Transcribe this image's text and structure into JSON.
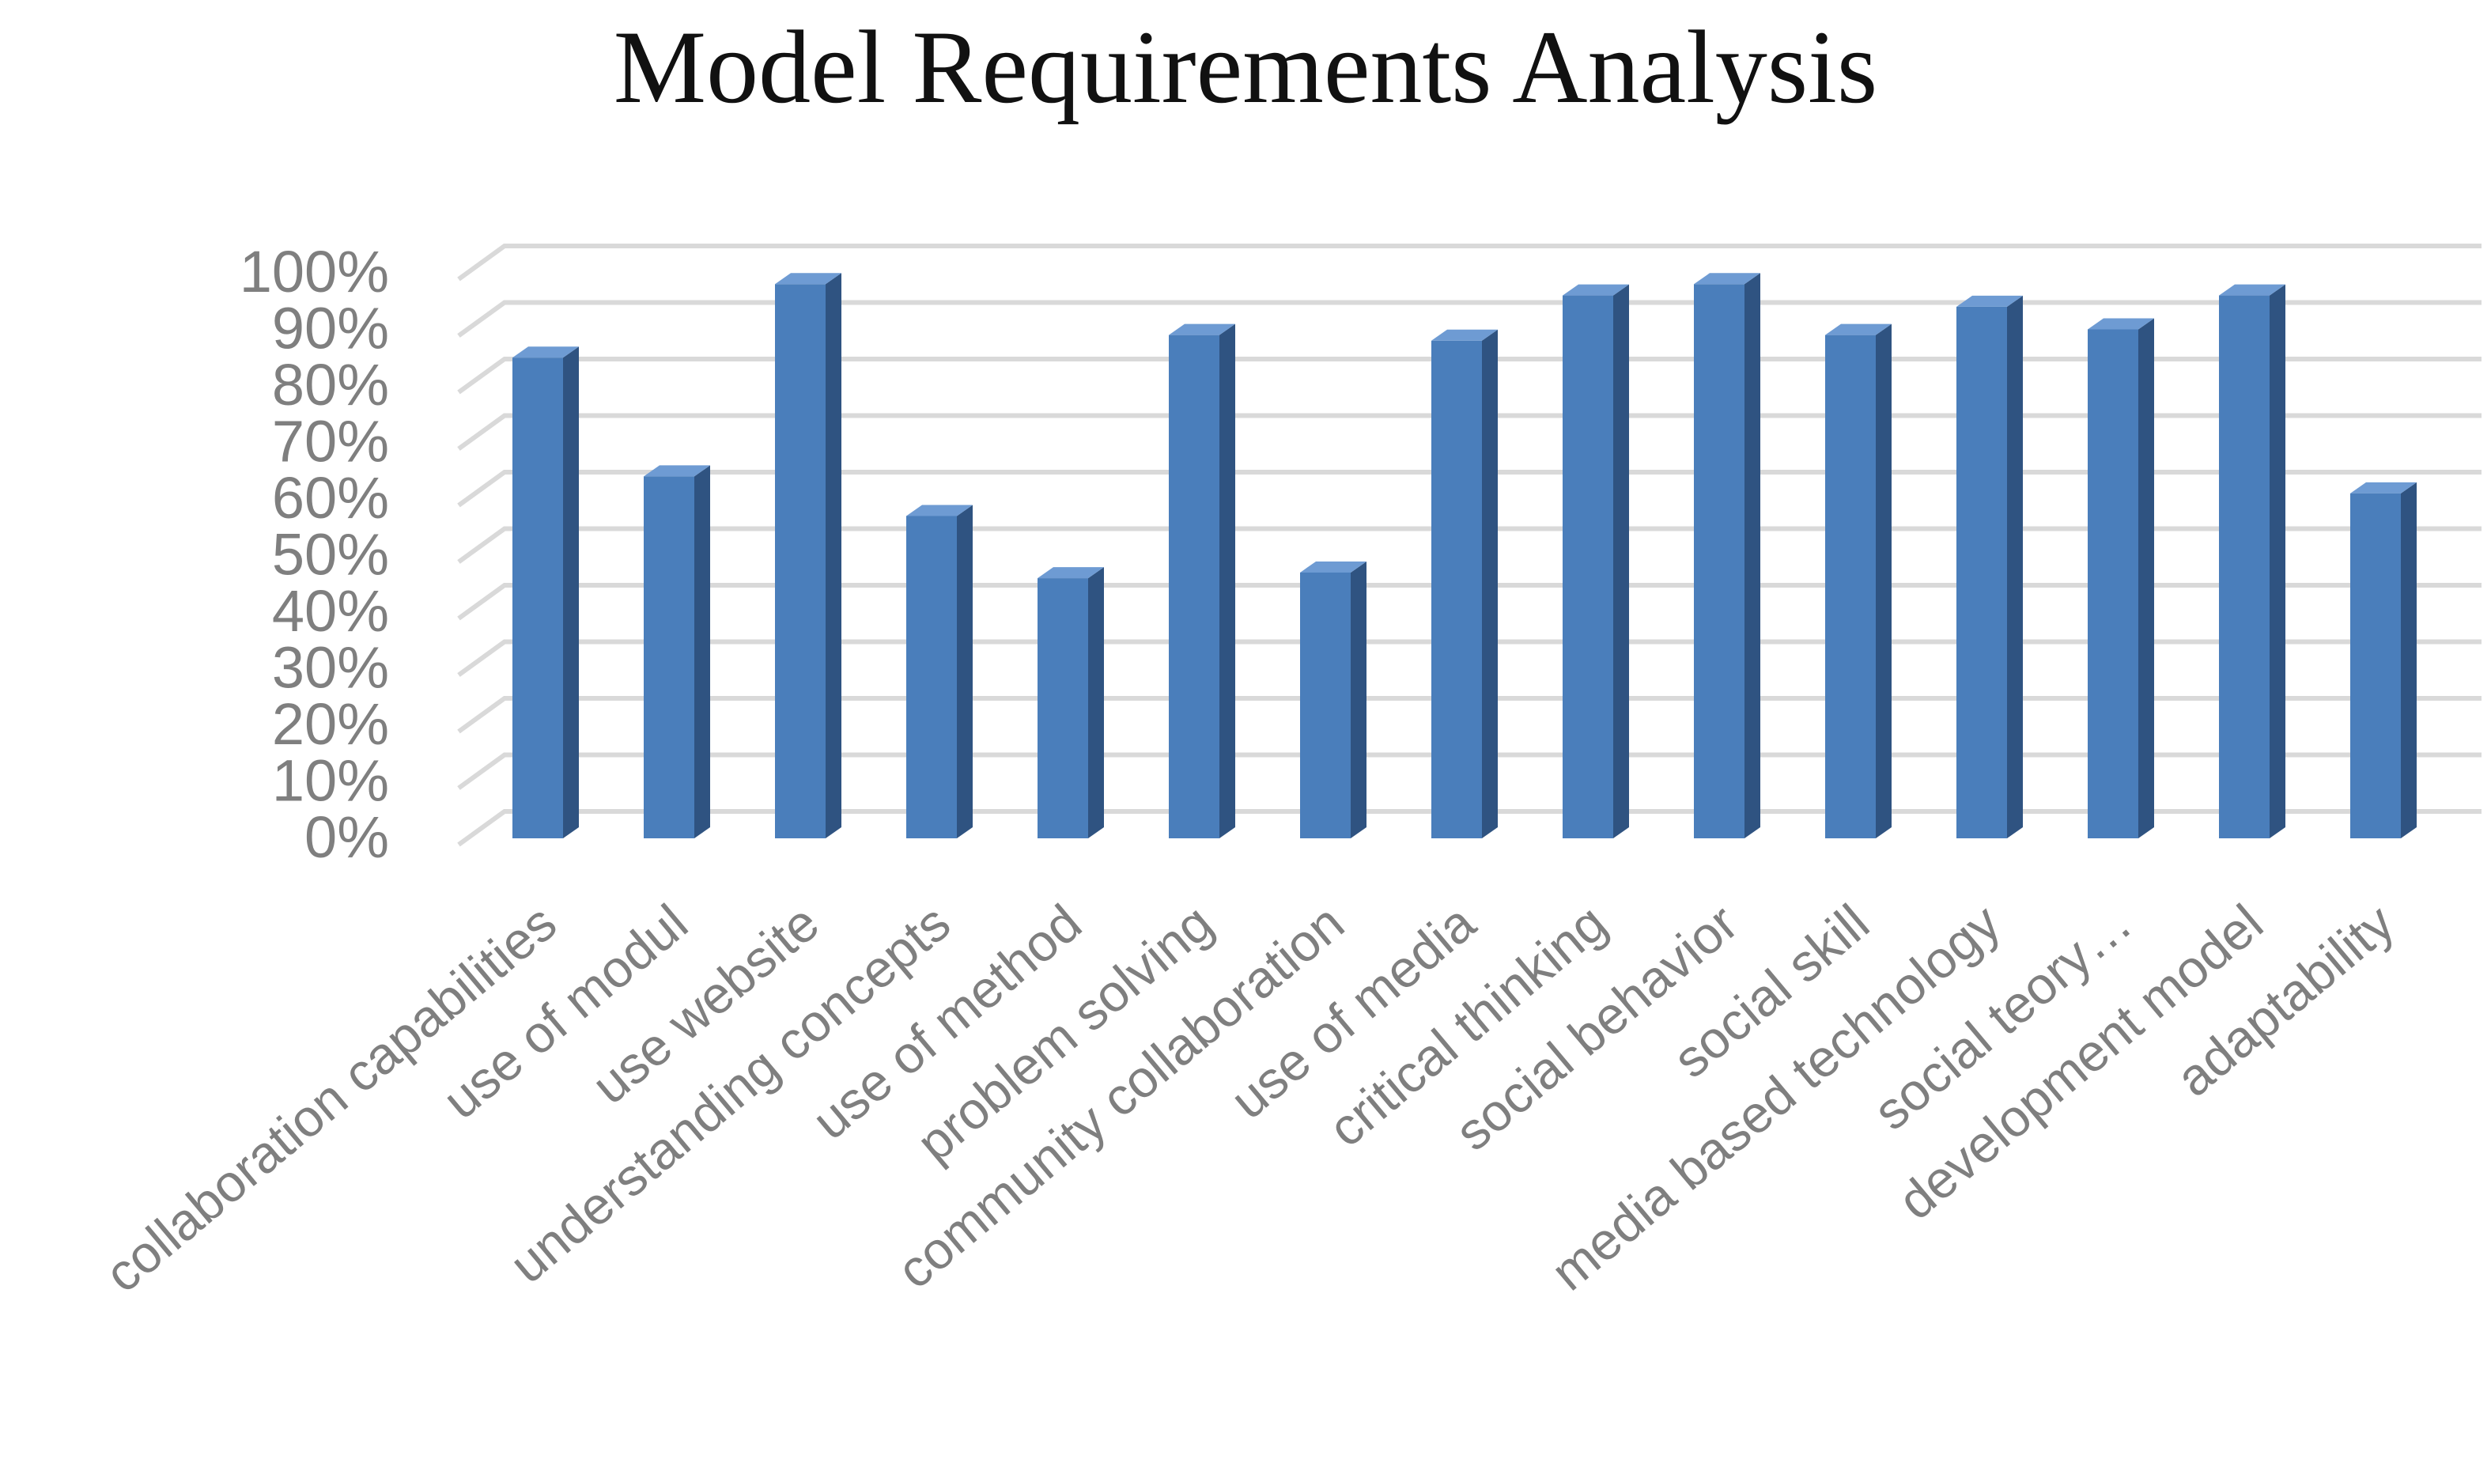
{
  "chart_data": {
    "type": "bar",
    "title": "Model Requirements Analysis",
    "xlabel": "",
    "ylabel": "",
    "ylim": [
      0,
      100
    ],
    "yticks": [
      "0%",
      "10%",
      "20%",
      "30%",
      "40%",
      "50%",
      "60%",
      "70%",
      "80%",
      "90%",
      "100%"
    ],
    "categories": [
      "collaboration capabilities",
      "use of modul",
      "use website",
      "understanding concepts",
      "use of method",
      "problem solving",
      "community collaboration",
      "use of media",
      "critical thinking",
      "social behavior",
      "social skill",
      "media based technology",
      "social teory…",
      "development model",
      "adaptability"
    ],
    "values": [
      85,
      64,
      98,
      57,
      46,
      89,
      47,
      88,
      96,
      98,
      89,
      94,
      90,
      96,
      61
    ],
    "grid": true,
    "legend": "none",
    "colors": {
      "front": "#4a7ebb",
      "side": "#2f5381",
      "top": "#6e9bd3",
      "grid": "#d9d9d9",
      "text": "#7f7f7f"
    }
  }
}
